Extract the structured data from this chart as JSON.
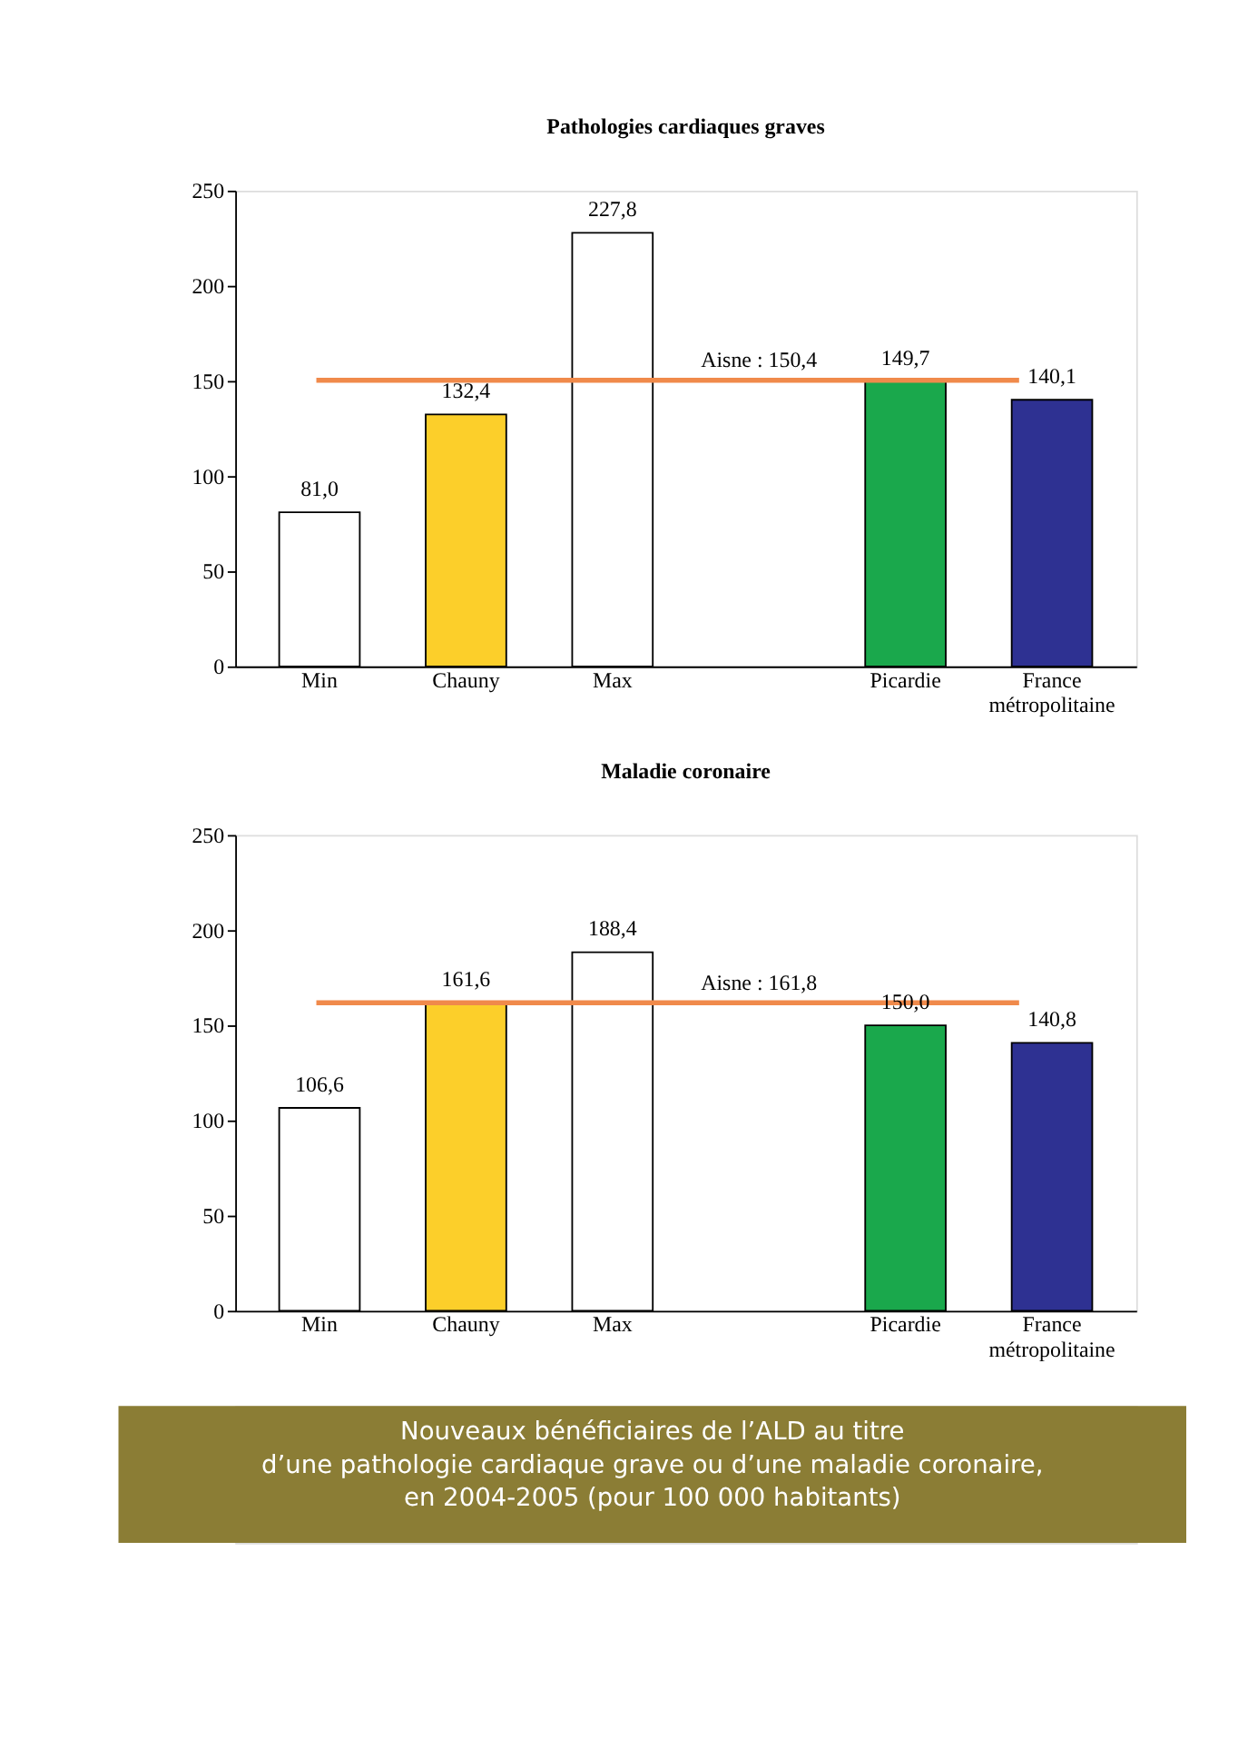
{
  "chart_data": [
    {
      "type": "bar",
      "title": "Pathologies cardiaques graves",
      "categories": [
        "Min",
        "Chauny",
        "Max",
        null,
        "Picardie",
        "France métropolitaine"
      ],
      "values": [
        81.0,
        132.4,
        227.8,
        null,
        149.7,
        140.1
      ],
      "colors": [
        "#ffffff",
        "#fccf2a",
        "#ffffff",
        "#ffffff",
        "#1aa84c",
        "#2e3192"
      ],
      "value_labels": [
        "81,0",
        "132,4",
        "227,8",
        null,
        "149,7",
        "140,1"
      ],
      "ylim": [
        0,
        250
      ],
      "yticks": [
        0,
        50,
        100,
        150,
        200,
        250
      ],
      "grid": false,
      "ref_lines": [
        {
          "axis": "y",
          "value": 150.4,
          "label": "Aisne : 150,4",
          "color": "#f08a4b"
        }
      ]
    },
    {
      "type": "bar",
      "title": "Maladie coronaire",
      "categories": [
        "Min",
        "Chauny",
        "Max",
        null,
        "Picardie",
        "France métropolitaine"
      ],
      "values": [
        106.6,
        161.6,
        188.4,
        null,
        150.0,
        140.8
      ],
      "colors": [
        "#ffffff",
        "#fccf2a",
        "#ffffff",
        "#ffffff",
        "#1aa84c",
        "#2e3192"
      ],
      "value_labels": [
        "106,6",
        "161,6",
        "188,4",
        null,
        "150,0",
        "140,8"
      ],
      "ylim": [
        0,
        250
      ],
      "yticks": [
        0,
        50,
        100,
        150,
        200,
        250
      ],
      "grid": false,
      "ref_lines": [
        {
          "axis": "y",
          "value": 161.8,
          "label": "Aisne : 161,8",
          "color": "#f08a4b"
        }
      ],
      "annotations": [
        "Nouveaux bénéficiaires de l’ALD au titre\nd’une pathologie cardiaque grave ou d’une maladie coronaire,\nen 2004-2005 (pour 100 000 habitants)"
      ]
    }
  ]
}
